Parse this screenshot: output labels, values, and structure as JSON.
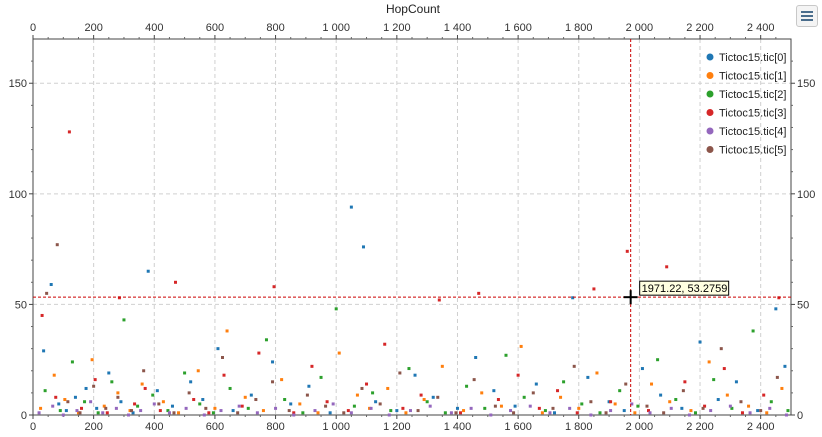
{
  "chart_data": {
    "type": "scatter",
    "title": "HopCount",
    "xlabel": "",
    "ylabel": "",
    "xlim": [
      0,
      2500
    ],
    "ylim": [
      0,
      170
    ],
    "x_ticks": [
      0,
      200,
      400,
      600,
      800,
      1000,
      1200,
      1400,
      1600,
      1800,
      2000,
      2200,
      2400
    ],
    "x_tick_labels": [
      "0",
      "200",
      "400",
      "600",
      "800",
      "1 000",
      "1 200",
      "1 400",
      "1 600",
      "1 800",
      "2 000",
      "2 200",
      "2 400"
    ],
    "y_ticks": [
      0,
      50,
      100,
      150
    ],
    "y_tick_labels": [
      "0",
      "50",
      "100",
      "150"
    ],
    "grid": true,
    "legend_position": "top-right",
    "series": [
      {
        "name": "Tictoc15.tic[0]",
        "color": "#1f77b4",
        "points": [
          [
            35,
            29
          ],
          [
            60,
            59
          ],
          [
            85,
            5
          ],
          [
            110,
            2
          ],
          [
            140,
            8
          ],
          [
            175,
            12
          ],
          [
            210,
            3
          ],
          [
            250,
            19
          ],
          [
            290,
            6
          ],
          [
            330,
            1
          ],
          [
            380,
            65
          ],
          [
            410,
            11
          ],
          [
            460,
            4
          ],
          [
            520,
            15
          ],
          [
            560,
            7
          ],
          [
            610,
            30
          ],
          [
            660,
            2
          ],
          [
            720,
            9
          ],
          [
            790,
            24
          ],
          [
            850,
            5
          ],
          [
            910,
            13
          ],
          [
            980,
            1
          ],
          [
            1050,
            94
          ],
          [
            1090,
            76
          ],
          [
            1130,
            6
          ],
          [
            1200,
            2
          ],
          [
            1260,
            18
          ],
          [
            1320,
            8
          ],
          [
            1400,
            3
          ],
          [
            1460,
            26
          ],
          [
            1520,
            11
          ],
          [
            1590,
            4
          ],
          [
            1660,
            14
          ],
          [
            1720,
            1
          ],
          [
            1780,
            53
          ],
          [
            1830,
            17
          ],
          [
            1900,
            6
          ],
          [
            1950,
            2
          ],
          [
            2010,
            21
          ],
          [
            2070,
            9
          ],
          [
            2140,
            3
          ],
          [
            2200,
            33
          ],
          [
            2260,
            7
          ],
          [
            2320,
            15
          ],
          [
            2390,
            2
          ],
          [
            2450,
            48
          ],
          [
            2480,
            22
          ]
        ]
      },
      {
        "name": "Tictoc15.tic[1]",
        "color": "#ff7f0e",
        "points": [
          [
            25,
            3
          ],
          [
            70,
            18
          ],
          [
            105,
            7
          ],
          [
            150,
            1
          ],
          [
            195,
            25
          ],
          [
            235,
            4
          ],
          [
            280,
            10
          ],
          [
            320,
            2
          ],
          [
            360,
            14
          ],
          [
            430,
            6
          ],
          [
            480,
            1
          ],
          [
            545,
            20
          ],
          [
            600,
            3
          ],
          [
            640,
            38
          ],
          [
            700,
            8
          ],
          [
            760,
            2
          ],
          [
            820,
            16
          ],
          [
            880,
            5
          ],
          [
            940,
            1
          ],
          [
            1010,
            28
          ],
          [
            1070,
            9
          ],
          [
            1110,
            3
          ],
          [
            1170,
            12
          ],
          [
            1230,
            1
          ],
          [
            1290,
            7
          ],
          [
            1350,
            22
          ],
          [
            1420,
            2
          ],
          [
            1480,
            10
          ],
          [
            1545,
            4
          ],
          [
            1610,
            31
          ],
          [
            1680,
            1
          ],
          [
            1740,
            8
          ],
          [
            1800,
            3
          ],
          [
            1860,
            19
          ],
          [
            1920,
            5
          ],
          [
            1985,
            1
          ],
          [
            2040,
            14
          ],
          [
            2100,
            6
          ],
          [
            2170,
            2
          ],
          [
            2230,
            24
          ],
          [
            2290,
            9
          ],
          [
            2360,
            4
          ],
          [
            2420,
            1
          ],
          [
            2470,
            12
          ]
        ]
      },
      {
        "name": "Tictoc15.tic[2]",
        "color": "#2ca02c",
        "points": [
          [
            40,
            11
          ],
          [
            90,
            2
          ],
          [
            130,
            24
          ],
          [
            170,
            6
          ],
          [
            215,
            1
          ],
          [
            260,
            15
          ],
          [
            300,
            43
          ],
          [
            345,
            4
          ],
          [
            395,
            9
          ],
          [
            445,
            2
          ],
          [
            500,
            19
          ],
          [
            550,
            5
          ],
          [
            595,
            1
          ],
          [
            650,
            12
          ],
          [
            710,
            3
          ],
          [
            770,
            34
          ],
          [
            830,
            7
          ],
          [
            890,
            1
          ],
          [
            950,
            17
          ],
          [
            1000,
            48
          ],
          [
            1060,
            4
          ],
          [
            1120,
            10
          ],
          [
            1180,
            2
          ],
          [
            1240,
            21
          ],
          [
            1300,
            6
          ],
          [
            1360,
            1
          ],
          [
            1430,
            13
          ],
          [
            1490,
            3
          ],
          [
            1560,
            27
          ],
          [
            1620,
            8
          ],
          [
            1690,
            2
          ],
          [
            1750,
            15
          ],
          [
            1810,
            5
          ],
          [
            1870,
            1
          ],
          [
            1935,
            11
          ],
          [
            1995,
            4
          ],
          [
            2060,
            25
          ],
          [
            2120,
            7
          ],
          [
            2185,
            1
          ],
          [
            2245,
            16
          ],
          [
            2305,
            3
          ],
          [
            2375,
            38
          ],
          [
            2435,
            6
          ],
          [
            2490,
            2
          ]
        ]
      },
      {
        "name": "Tictoc15.tic[3]",
        "color": "#d62728",
        "points": [
          [
            30,
            45
          ],
          [
            75,
            8
          ],
          [
            120,
            128
          ],
          [
            160,
            3
          ],
          [
            205,
            16
          ],
          [
            245,
            1
          ],
          [
            285,
            53
          ],
          [
            335,
            5
          ],
          [
            370,
            12
          ],
          [
            420,
            2
          ],
          [
            470,
            60
          ],
          [
            530,
            7
          ],
          [
            580,
            1
          ],
          [
            630,
            18
          ],
          [
            690,
            4
          ],
          [
            745,
            28
          ],
          [
            795,
            58
          ],
          [
            860,
            1
          ],
          [
            920,
            22
          ],
          [
            970,
            6
          ],
          [
            1040,
            2
          ],
          [
            1100,
            14
          ],
          [
            1160,
            32
          ],
          [
            1220,
            3
          ],
          [
            1280,
            9
          ],
          [
            1340,
            52
          ],
          [
            1410,
            1
          ],
          [
            1470,
            55
          ],
          [
            1535,
            7
          ],
          [
            1600,
            18
          ],
          [
            1670,
            3
          ],
          [
            1730,
            11
          ],
          [
            1795,
            1
          ],
          [
            1850,
            57
          ],
          [
            1905,
            6
          ],
          [
            1960,
            74
          ],
          [
            2030,
            2
          ],
          [
            2090,
            67
          ],
          [
            2150,
            15
          ],
          [
            2215,
            4
          ],
          [
            2280,
            21
          ],
          [
            2340,
            1
          ],
          [
            2410,
            9
          ],
          [
            2460,
            53
          ]
        ]
      },
      {
        "name": "Tictoc15.tic[4]",
        "color": "#9467bd",
        "points": [
          [
            20,
            1
          ],
          [
            65,
            4
          ],
          [
            100,
            0
          ],
          [
            145,
            2
          ],
          [
            190,
            6
          ],
          [
            230,
            1
          ],
          [
            275,
            3
          ],
          [
            315,
            0
          ],
          [
            355,
            2
          ],
          [
            400,
            5
          ],
          [
            450,
            1
          ],
          [
            505,
            3
          ],
          [
            565,
            0
          ],
          [
            620,
            2
          ],
          [
            680,
            4
          ],
          [
            740,
            1
          ],
          [
            800,
            3
          ],
          [
            860,
            0
          ],
          [
            930,
            2
          ],
          [
            990,
            5
          ],
          [
            1050,
            1
          ],
          [
            1115,
            3
          ],
          [
            1175,
            0
          ],
          [
            1245,
            2
          ],
          [
            1310,
            4
          ],
          [
            1380,
            1
          ],
          [
            1445,
            3
          ],
          [
            1510,
            0
          ],
          [
            1575,
            2
          ],
          [
            1640,
            4
          ],
          [
            1705,
            1
          ],
          [
            1770,
            3
          ],
          [
            1840,
            0
          ],
          [
            1905,
            2
          ],
          [
            1975,
            5
          ],
          [
            2035,
            1
          ],
          [
            2105,
            3
          ],
          [
            2165,
            0
          ],
          [
            2235,
            2
          ],
          [
            2300,
            4
          ],
          [
            2365,
            1
          ],
          [
            2430,
            3
          ],
          [
            2485,
            0
          ]
        ]
      },
      {
        "name": "Tictoc15.tic[5]",
        "color": "#8c564b",
        "points": [
          [
            45,
            55
          ],
          [
            80,
            77
          ],
          [
            115,
            6
          ],
          [
            155,
            1
          ],
          [
            200,
            13
          ],
          [
            240,
            3
          ],
          [
            280,
            8
          ],
          [
            325,
            2
          ],
          [
            365,
            20
          ],
          [
            415,
            5
          ],
          [
            465,
            1
          ],
          [
            515,
            10
          ],
          [
            570,
            3
          ],
          [
            625,
            26
          ],
          [
            675,
            1
          ],
          [
            735,
            7
          ],
          [
            790,
            15
          ],
          [
            845,
            2
          ],
          [
            905,
            9
          ],
          [
            965,
            4
          ],
          [
            1025,
            1
          ],
          [
            1085,
            12
          ],
          [
            1145,
            5
          ],
          [
            1210,
            19
          ],
          [
            1270,
            2
          ],
          [
            1335,
            8
          ],
          [
            1395,
            1
          ],
          [
            1455,
            16
          ],
          [
            1525,
            4
          ],
          [
            1585,
            1
          ],
          [
            1650,
            10
          ],
          [
            1715,
            3
          ],
          [
            1785,
            22
          ],
          [
            1840,
            6
          ],
          [
            1890,
            1
          ],
          [
            1955,
            14
          ],
          [
            2025,
            4
          ],
          [
            2080,
            1
          ],
          [
            2145,
            11
          ],
          [
            2210,
            3
          ],
          [
            2270,
            30
          ],
          [
            2335,
            6
          ],
          [
            2400,
            2
          ],
          [
            2455,
            17
          ]
        ]
      }
    ]
  },
  "cursor": {
    "x": 1971.22,
    "y": 53.2759,
    "label": "1971.22, 53.2759"
  },
  "legend_toggle": {
    "icon": "legend-list-icon"
  }
}
